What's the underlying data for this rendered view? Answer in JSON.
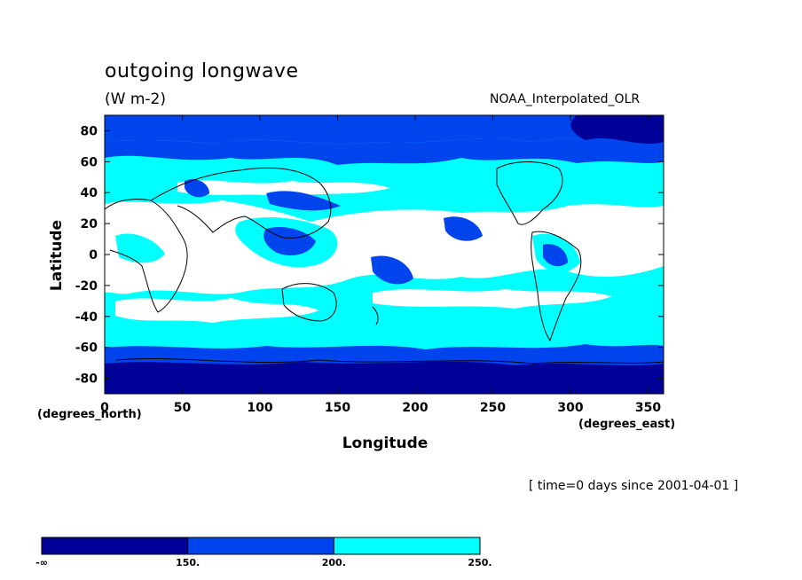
{
  "map": {
    "title": "outgoing longwave",
    "units": "(W m-2)",
    "dataset": "NOAA_Interpolated_OLR",
    "time_note": "[ time=0 days since 2001-04-01 ]",
    "ylabel": "Latitude",
    "xlabel": "Longitude",
    "y_unit_label": "(degrees_north)",
    "x_unit_label": "(degrees_east)",
    "lon_range": [
      0,
      360
    ],
    "lat_range": [
      -90,
      90
    ],
    "lon_ticks": [
      0,
      50,
      100,
      150,
      200,
      250,
      300,
      350
    ],
    "lat_ticks": [
      80,
      60,
      40,
      20,
      0,
      -20,
      -40,
      -60,
      -80
    ],
    "levels": [
      {
        "label": "-∞",
        "color": "#000099"
      },
      {
        "label": "150.",
        "color": "#0044ee"
      },
      {
        "label": "200.",
        "color": "#00ffff"
      },
      {
        "label": "250.",
        "color": "#ffffff"
      }
    ],
    "colors": {
      "below_150": "#000099",
      "150_200": "#0044ee",
      "200_250": "#00ffff",
      "above_250": "#ffffff",
      "coastline": "#000000"
    }
  }
}
